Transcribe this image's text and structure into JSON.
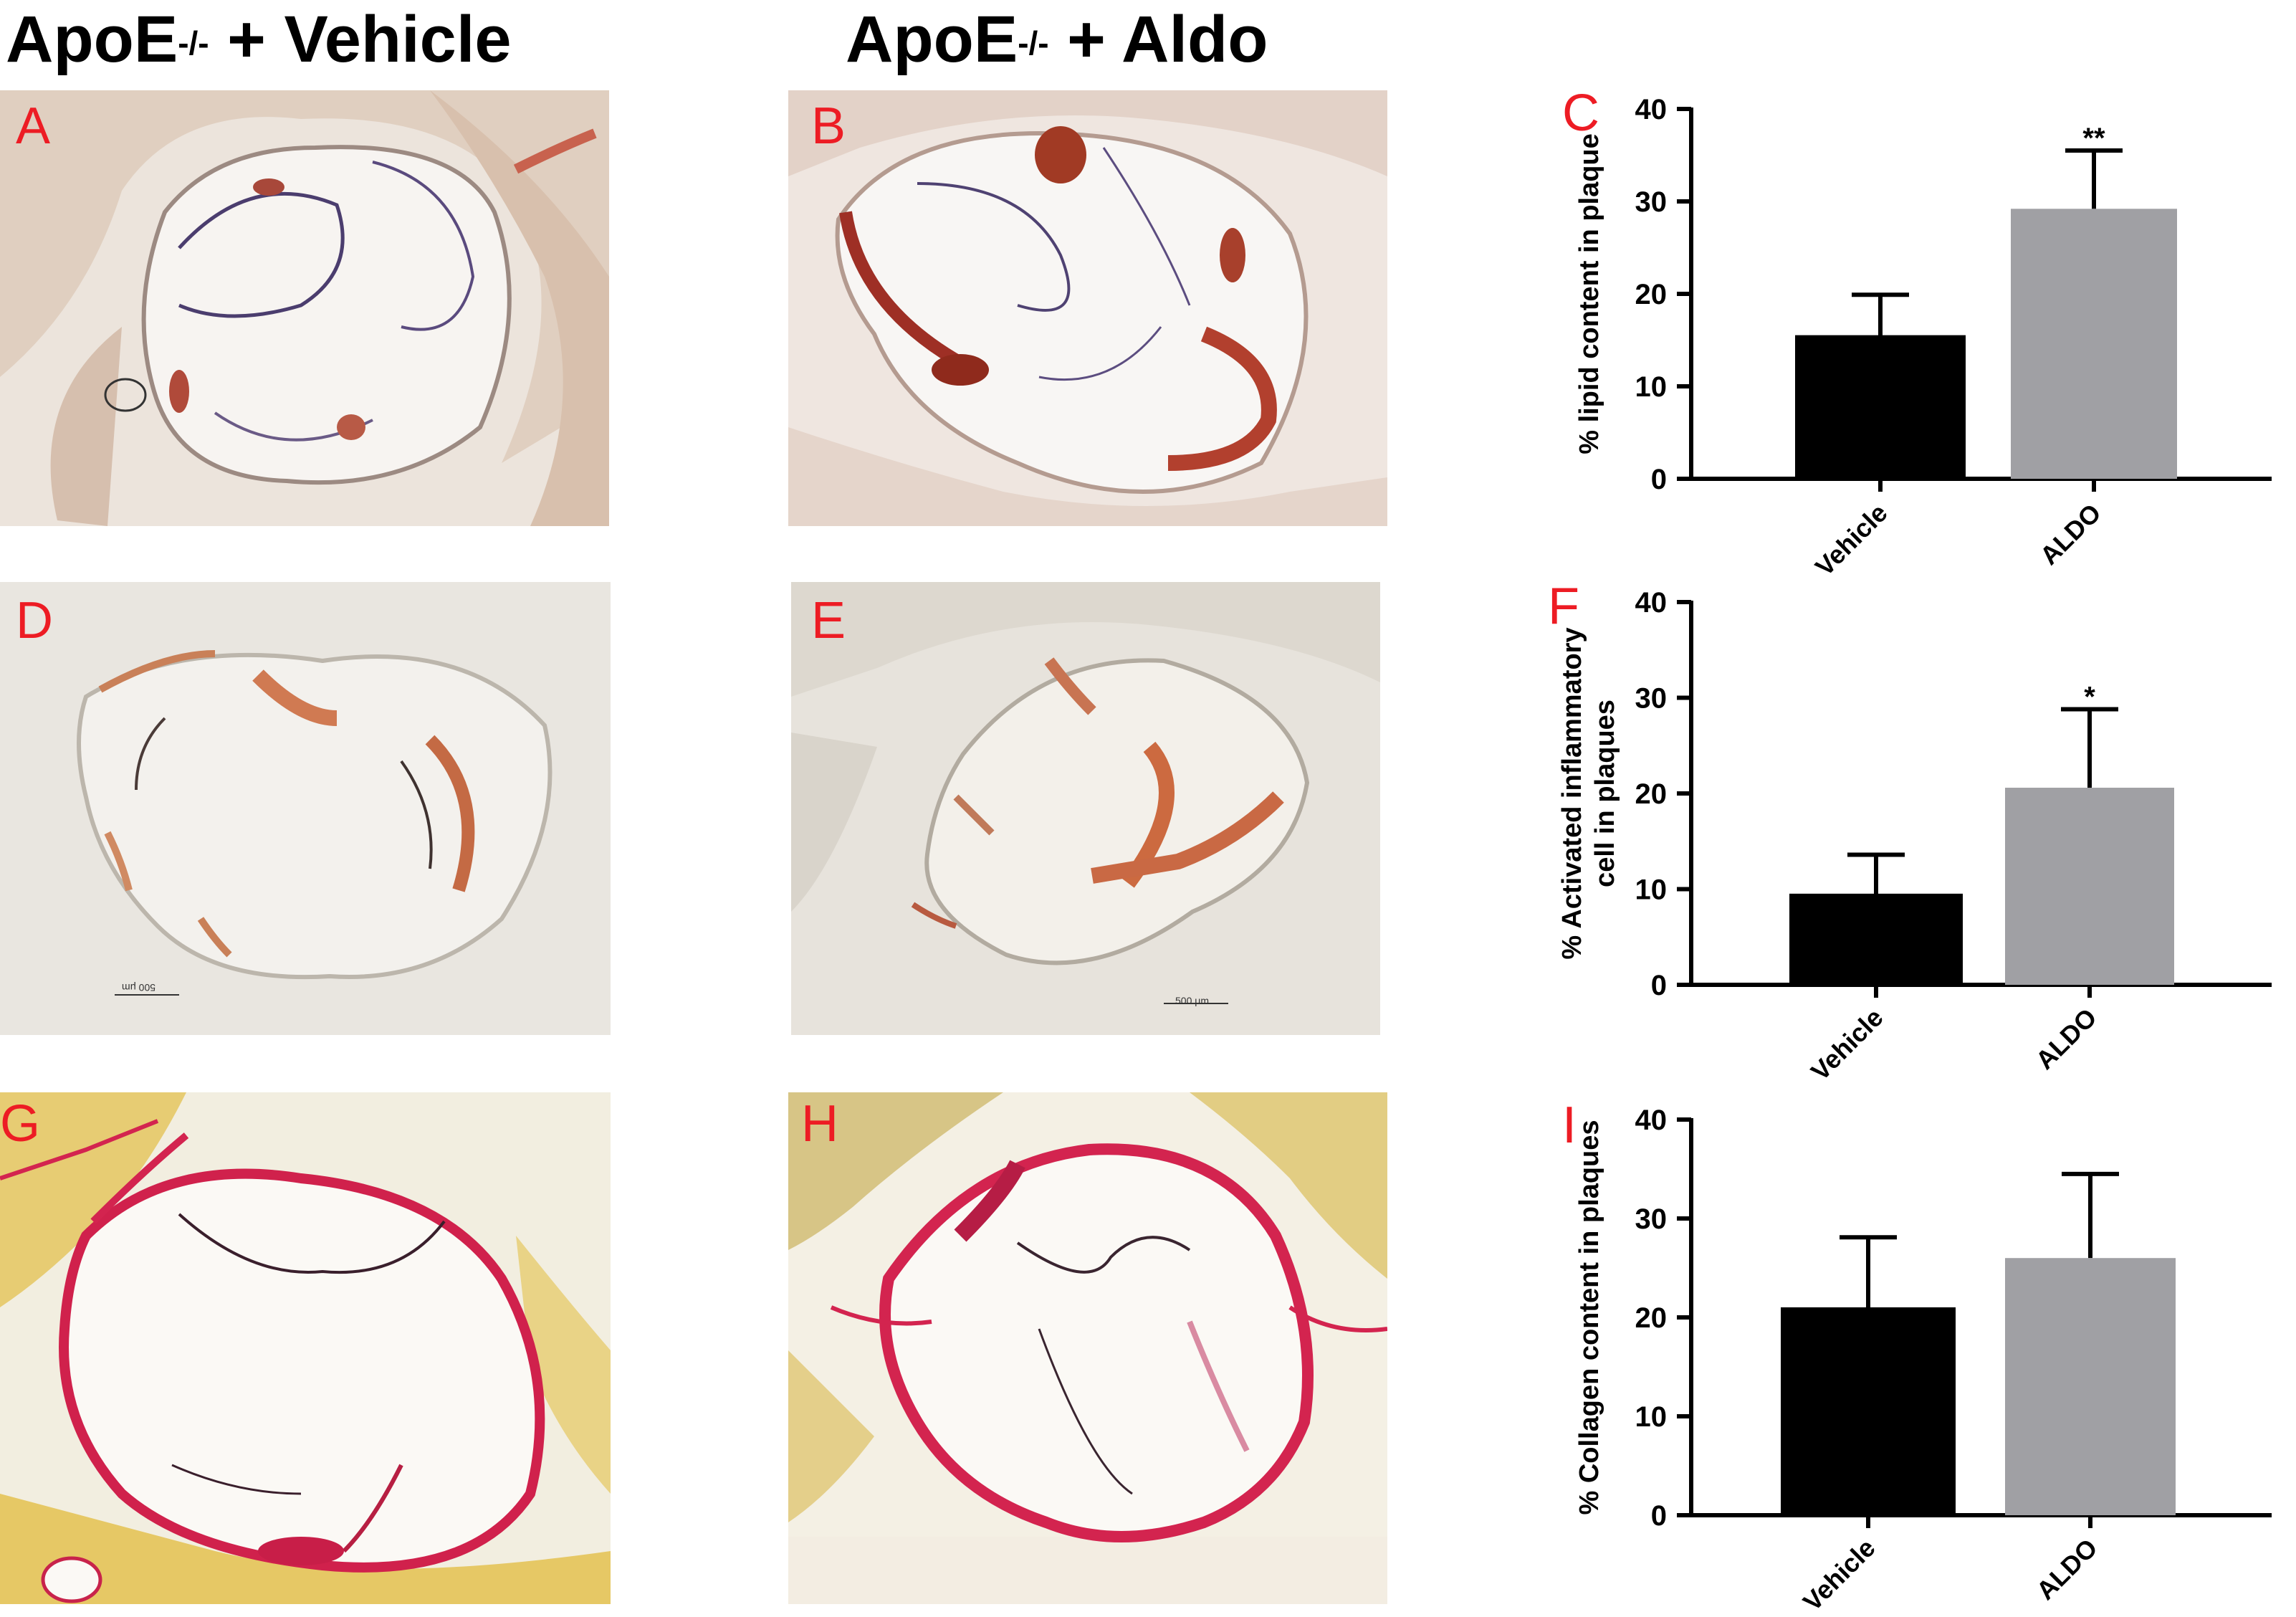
{
  "figure": {
    "column_titles": [
      {
        "base": "ApoE",
        "sup": "-/-",
        "rest": " + Vehicle"
      },
      {
        "base": "ApoE",
        "sup": "-/-",
        "rest": " + Aldo"
      }
    ],
    "panel_letters": {
      "A": "A",
      "B": "B",
      "C": "C",
      "D": "D",
      "E": "E",
      "F": "F",
      "G": "G",
      "H": "H",
      "I": "I"
    },
    "scale_bars": {
      "D": "500 μm",
      "E": "500 μm"
    },
    "colors": {
      "panel_letter": "#ed1c24",
      "vehicle_bar": "#000000",
      "aldo_bar": "#a0a0a4",
      "oil_red_stain": "#b5302a",
      "picrosirius_red": "#d3244f",
      "picrosirius_yellow": "#e8cc6a"
    }
  },
  "chart_data": [
    {
      "id": "C",
      "type": "bar",
      "categories": [
        "Vehicle",
        "ALDO"
      ],
      "values": [
        15.3,
        29.2
      ],
      "error": [
        4.6,
        6.3
      ],
      "significance": [
        "",
        "**"
      ],
      "ylabel": "% lipid content in plaque",
      "ylim": [
        0,
        40
      ],
      "yticks": [
        0,
        10,
        20,
        30,
        40
      ],
      "colors": [
        "#000000",
        "#a0a0a4"
      ]
    },
    {
      "id": "F",
      "type": "bar",
      "categories": [
        "Vehicle",
        "ALDO"
      ],
      "values": [
        9.3,
        20.6
      ],
      "error": [
        4.3,
        8.2
      ],
      "significance": [
        "",
        "*"
      ],
      "ylabel": [
        "% Activated inflammatory",
        "cell in plaques"
      ],
      "ylim": [
        0,
        40
      ],
      "yticks": [
        0,
        10,
        20,
        30,
        40
      ],
      "colors": [
        "#000000",
        "#a0a0a4"
      ]
    },
    {
      "id": "I",
      "type": "bar",
      "categories": [
        "Vehicle",
        "ALDO"
      ],
      "values": [
        20.8,
        26.0
      ],
      "error": [
        7.3,
        8.5
      ],
      "significance": [
        "",
        ""
      ],
      "ylabel": "% Collagen content in plaques",
      "ylim": [
        0,
        40
      ],
      "yticks": [
        0,
        10,
        20,
        30,
        40
      ],
      "colors": [
        "#000000",
        "#a0a0a4"
      ]
    }
  ]
}
